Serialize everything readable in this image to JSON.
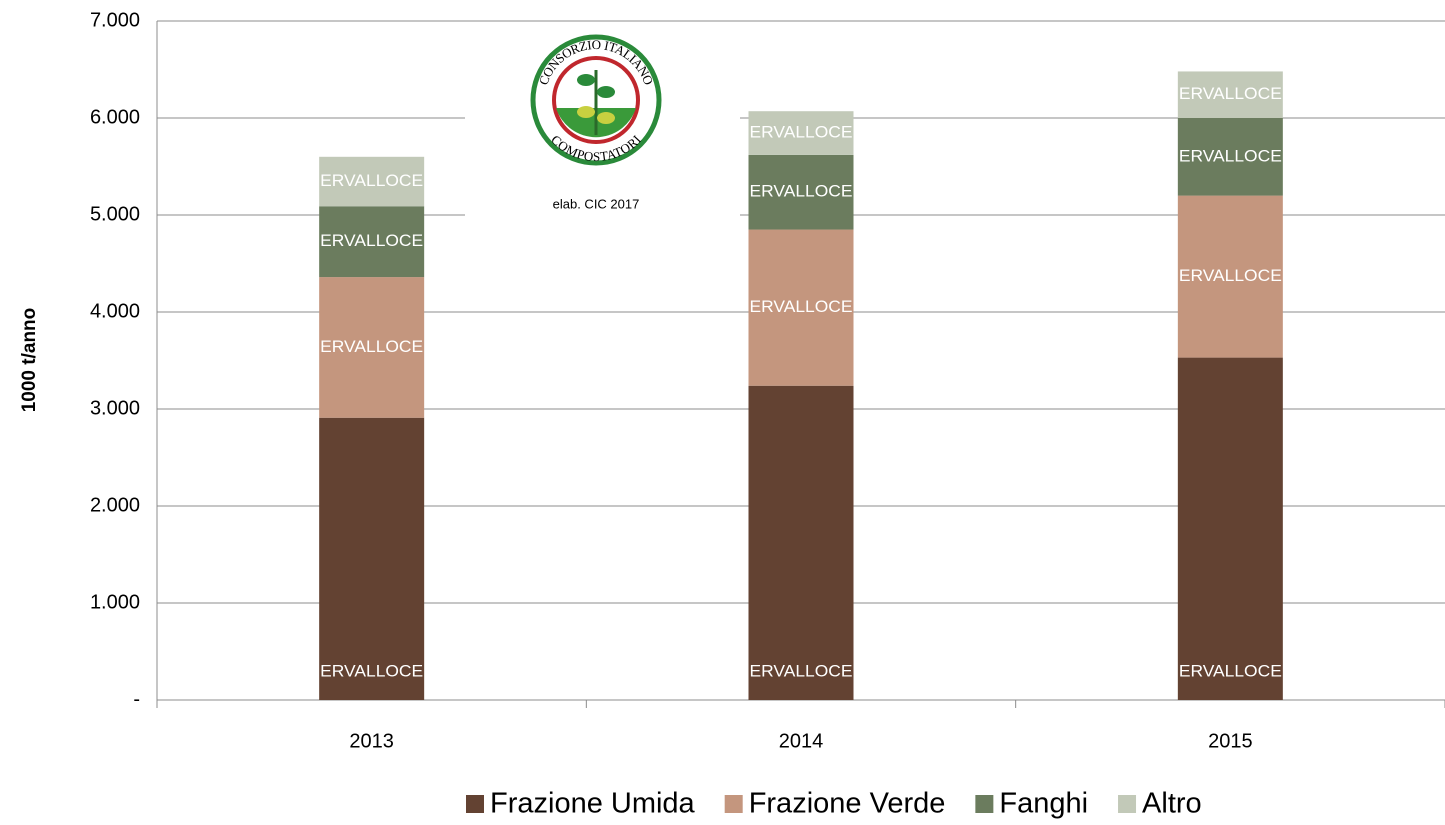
{
  "chart_data": {
    "type": "stacked_bar",
    "y_label": "1000 t/anno",
    "annotation": "elab. CIC 2017",
    "logo": {
      "top": "CONSORZIO ITALIANO",
      "bottom": "COMPOSTATORI"
    },
    "categories": [
      "2013",
      "2014",
      "2015"
    ],
    "series": [
      {
        "name": "Frazione Umida",
        "color": "#634232",
        "values": [
          2910,
          3240,
          3530
        ],
        "labels": [
          "ERVALLOCE",
          "ERVALLOCE",
          "ERVALLOCE"
        ]
      },
      {
        "name": "Frazione Verde",
        "color": "#c4967e",
        "values": [
          1450,
          1610,
          1670
        ],
        "labels": [
          "ERVALLOCE",
          "ERVALLOCE",
          "ERVALLOCE"
        ]
      },
      {
        "name": "Fanghi",
        "color": "#6b7c5e",
        "values": [
          730,
          770,
          800
        ],
        "labels": [
          "ERVALLOCE",
          "ERVALLOCE",
          "ERVALLOCE"
        ]
      },
      {
        "name": "Altro",
        "color": "#c2c9b8",
        "values": [
          510,
          450,
          480
        ],
        "labels": [
          "ERVALLOCE",
          "ERVALLOCE",
          "ERVALLOCE"
        ]
      }
    ],
    "ylim": [
      0,
      7000
    ],
    "yticks": [
      {
        "value": 0,
        "label": "-"
      },
      {
        "value": 1000,
        "label": "1.000"
      },
      {
        "value": 2000,
        "label": "2.000"
      },
      {
        "value": 3000,
        "label": "3.000"
      },
      {
        "value": 4000,
        "label": "4.000"
      },
      {
        "value": 5000,
        "label": "5.000"
      },
      {
        "value": 6000,
        "label": "6.000"
      },
      {
        "value": 7000,
        "label": "7.000"
      }
    ],
    "grid": true
  }
}
